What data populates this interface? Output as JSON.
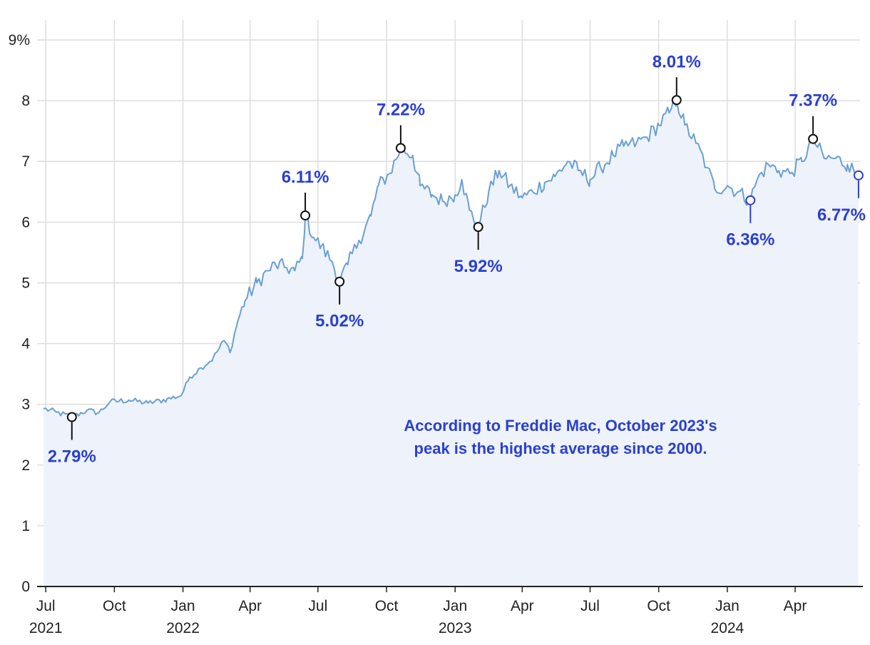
{
  "chart_data": {
    "type": "area",
    "y_tick_labels": [
      "0",
      "1",
      "2",
      "3",
      "4",
      "5",
      "6",
      "7",
      "8",
      "9%"
    ],
    "ylim": [
      0,
      9
    ],
    "x_ticks": [
      {
        "date": "2021-07-01",
        "month": "Jul",
        "year": "2021"
      },
      {
        "date": "2021-10-01",
        "month": "Oct",
        "year": ""
      },
      {
        "date": "2022-01-01",
        "month": "Jan",
        "year": "2022"
      },
      {
        "date": "2022-04-01",
        "month": "Apr",
        "year": ""
      },
      {
        "date": "2022-07-01",
        "month": "Jul",
        "year": ""
      },
      {
        "date": "2022-10-01",
        "month": "Oct",
        "year": ""
      },
      {
        "date": "2023-01-01",
        "month": "Jan",
        "year": "2023"
      },
      {
        "date": "2023-04-01",
        "month": "Apr",
        "year": ""
      },
      {
        "date": "2023-07-01",
        "month": "Jul",
        "year": ""
      },
      {
        "date": "2023-10-01",
        "month": "Oct",
        "year": ""
      },
      {
        "date": "2024-01-01",
        "month": "Jan",
        "year": "2024"
      },
      {
        "date": "2024-04-01",
        "month": "Apr",
        "year": ""
      }
    ],
    "xlim": [
      "2021-06-27",
      "2024-06-27"
    ],
    "grid": true,
    "series_points": [
      [
        "2021-06-28",
        2.93
      ],
      [
        "2021-07-15",
        2.87
      ],
      [
        "2021-08-05",
        2.79
      ],
      [
        "2021-08-25",
        2.9
      ],
      [
        "2021-09-10",
        2.86
      ],
      [
        "2021-09-25",
        3.04
      ],
      [
        "2021-10-20",
        3.07
      ],
      [
        "2021-11-15",
        3.02
      ],
      [
        "2021-12-10",
        3.08
      ],
      [
        "2021-12-30",
        3.15
      ],
      [
        "2022-01-10",
        3.45
      ],
      [
        "2022-01-25",
        3.6
      ],
      [
        "2022-02-10",
        3.75
      ],
      [
        "2022-02-25",
        4.05
      ],
      [
        "2022-03-05",
        3.85
      ],
      [
        "2022-03-15",
        4.35
      ],
      [
        "2022-03-25",
        4.7
      ],
      [
        "2022-04-10",
        5.0
      ],
      [
        "2022-04-25",
        5.2
      ],
      [
        "2022-05-05",
        5.3
      ],
      [
        "2022-05-20",
        5.25
      ],
      [
        "2022-05-31",
        5.2
      ],
      [
        "2022-06-10",
        5.4
      ],
      [
        "2022-06-14",
        6.11
      ],
      [
        "2022-06-25",
        5.75
      ],
      [
        "2022-07-05",
        5.6
      ],
      [
        "2022-07-20",
        5.35
      ],
      [
        "2022-07-30",
        5.02
      ],
      [
        "2022-08-10",
        5.3
      ],
      [
        "2022-08-25",
        5.7
      ],
      [
        "2022-09-10",
        6.1
      ],
      [
        "2022-09-20",
        6.6
      ],
      [
        "2022-10-05",
        6.8
      ],
      [
        "2022-10-20",
        7.22
      ],
      [
        "2022-11-05",
        7.1
      ],
      [
        "2022-11-15",
        6.6
      ],
      [
        "2022-12-01",
        6.45
      ],
      [
        "2022-12-15",
        6.35
      ],
      [
        "2023-01-01",
        6.45
      ],
      [
        "2023-01-10",
        6.7
      ],
      [
        "2023-01-20",
        6.2
      ],
      [
        "2023-02-01",
        5.92
      ],
      [
        "2023-02-15",
        6.5
      ],
      [
        "2023-03-01",
        6.85
      ],
      [
        "2023-03-15",
        6.6
      ],
      [
        "2023-04-01",
        6.4
      ],
      [
        "2023-04-15",
        6.5
      ],
      [
        "2023-05-01",
        6.65
      ],
      [
        "2023-05-15",
        6.75
      ],
      [
        "2023-06-01",
        7.0
      ],
      [
        "2023-06-15",
        6.85
      ],
      [
        "2023-07-01",
        6.7
      ],
      [
        "2023-07-15",
        6.9
      ],
      [
        "2023-08-01",
        7.1
      ],
      [
        "2023-08-15",
        7.25
      ],
      [
        "2023-09-01",
        7.3
      ],
      [
        "2023-09-15",
        7.4
      ],
      [
        "2023-10-01",
        7.6
      ],
      [
        "2023-10-15",
        7.8
      ],
      [
        "2023-10-25",
        8.01
      ],
      [
        "2023-11-05",
        7.6
      ],
      [
        "2023-11-20",
        7.3
      ],
      [
        "2023-12-05",
        6.9
      ],
      [
        "2023-12-15",
        6.55
      ],
      [
        "2024-01-01",
        6.6
      ],
      [
        "2024-01-15",
        6.5
      ],
      [
        "2024-02-01",
        6.36
      ],
      [
        "2024-02-10",
        6.7
      ],
      [
        "2024-02-25",
        6.95
      ],
      [
        "2024-03-10",
        6.85
      ],
      [
        "2024-03-25",
        6.8
      ],
      [
        "2024-04-10",
        7.0
      ],
      [
        "2024-04-25",
        7.37
      ],
      [
        "2024-05-10",
        7.05
      ],
      [
        "2024-05-25",
        7.05
      ],
      [
        "2024-06-10",
        6.95
      ],
      [
        "2024-06-25",
        6.77
      ]
    ],
    "callouts": [
      {
        "date": "2021-08-05",
        "value": 2.79,
        "label": "2.79%",
        "pos": "below",
        "color": "#111111"
      },
      {
        "date": "2022-06-14",
        "value": 6.11,
        "label": "6.11%",
        "pos": "above",
        "color": "#111111"
      },
      {
        "date": "2022-07-30",
        "value": 5.02,
        "label": "5.02%",
        "pos": "below",
        "color": "#111111"
      },
      {
        "date": "2022-10-20",
        "value": 7.22,
        "label": "7.22%",
        "pos": "above",
        "color": "#111111"
      },
      {
        "date": "2023-02-01",
        "value": 5.92,
        "label": "5.92%",
        "pos": "below",
        "color": "#111111"
      },
      {
        "date": "2023-10-25",
        "value": 8.01,
        "label": "8.01%",
        "pos": "above",
        "color": "#111111"
      },
      {
        "date": "2024-02-01",
        "value": 6.36,
        "label": "6.36%",
        "pos": "below",
        "color": "#2b3fd1"
      },
      {
        "date": "2024-04-25",
        "value": 7.37,
        "label": "7.37%",
        "pos": "above",
        "color": "#111111"
      },
      {
        "date": "2024-06-25",
        "value": 6.77,
        "label": "6.77%",
        "pos": "below",
        "color": "#2b3fd1"
      }
    ],
    "note_lines": [
      "According to Freddie Mac, October 2023's",
      "peak is the highest average since 2000."
    ],
    "colors": {
      "line": "#6a9fd4",
      "fill": "#eef3fb",
      "annotation": "#2b3fd1",
      "grid": "#dddddd",
      "axis": "#222222"
    }
  }
}
